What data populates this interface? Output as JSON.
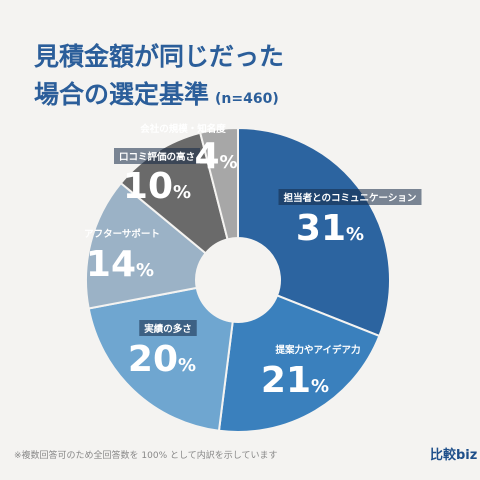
{
  "header": {
    "title_line1": "見積金額が同じだった",
    "title_line2": "場合の選定基準",
    "sample": "(n=460)"
  },
  "footer": {
    "note": "※複数回答可のため全回答数を 100% として内訳を示しています",
    "logo": "比較biz"
  },
  "chart_data": {
    "type": "pie",
    "style": "donut",
    "start": "12 o'clock",
    "direction": "clockwise",
    "unit": "%",
    "slices": [
      {
        "label": "担当者とのコミュニケーション",
        "value": 31,
        "color": "#2c64a0"
      },
      {
        "label": "提案力やアイデア力",
        "value": 21,
        "color": "#3a80bd"
      },
      {
        "label": "実績の多さ",
        "value": 20,
        "color": "#6fa6d0"
      },
      {
        "label": "アフターサポート",
        "value": 14,
        "color": "#9bb2c6"
      },
      {
        "label": "口コミ評価の高さ",
        "value": 10,
        "color": "#6a6a6a"
      },
      {
        "label": "会社の規模・知名度",
        "value": 4,
        "color": "#a7a7a7"
      }
    ]
  }
}
